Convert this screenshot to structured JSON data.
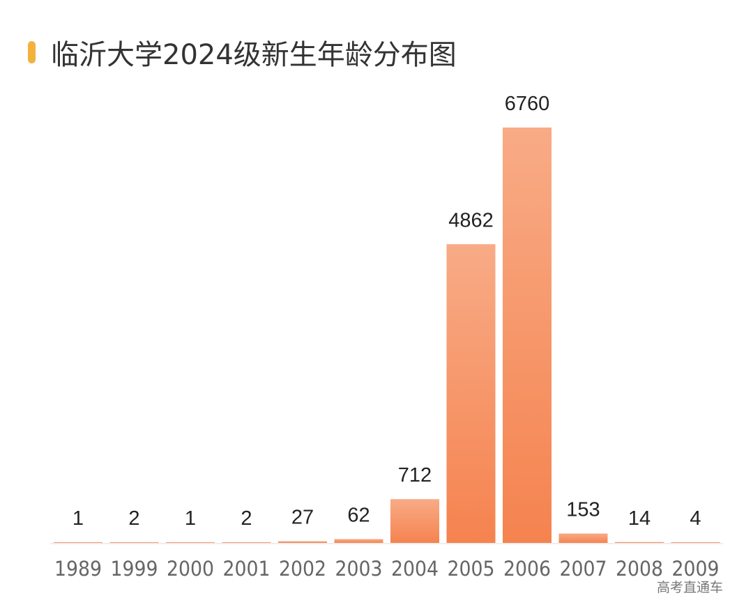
{
  "chart_data": {
    "type": "bar",
    "title": "临沂大学2024级新生年龄分布图",
    "categories": [
      "1989",
      "1999",
      "2000",
      "2001",
      "2002",
      "2003",
      "2004",
      "2005",
      "2006",
      "2007",
      "2008",
      "2009"
    ],
    "values": [
      1,
      2,
      1,
      2,
      27,
      62,
      712,
      4862,
      6760,
      153,
      14,
      4
    ],
    "xlabel": "",
    "ylabel": "",
    "ylim": [
      0,
      6760
    ],
    "grid": false,
    "data_labels": true,
    "colors": {
      "bar_top": "#f8ab86",
      "bar_bottom": "#f5834f",
      "title_marker": "#f3b23e"
    }
  },
  "watermark": "高考直通车"
}
